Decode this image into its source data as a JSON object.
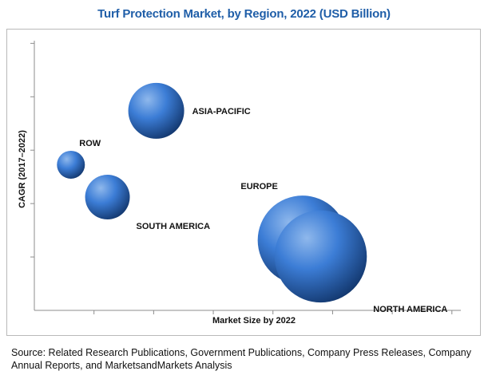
{
  "colors": {
    "title": "#1f5ea8",
    "bubble_light": "#8fb8ec",
    "bubble_mid": "#3c7dd6",
    "bubble_dark": "#13386f",
    "axis": "#8c8c8c",
    "frame": "#b9b9b9"
  },
  "source_text": "Source: Related Research Publications, Government Publications, Company Press Releases, Company Annual Reports, and MarketsandMarkets Analysis",
  "chart_data": {
    "type": "scatter",
    "subtype": "bubble",
    "title": "Turf Protection Market, by Region, 2022 (USD Billion)",
    "xlabel": "Market Size by 2022",
    "ylabel": "CAGR (2017–2022)",
    "xlim": [
      0,
      7
    ],
    "ylim": [
      0,
      5
    ],
    "x_ticks_visible": 7,
    "y_ticks_visible": 5,
    "grid": false,
    "legend": "none",
    "series": [
      {
        "points": [
          {
            "label": "ROW",
            "x": 0.6,
            "y": 2.7,
            "size": 1.0,
            "label_pos": "top-right"
          },
          {
            "label": "ASIA-PACIFIC",
            "x": 2.0,
            "y": 3.7,
            "size": 2.0,
            "label_pos": "right"
          },
          {
            "label": "SOUTH AMERICA",
            "x": 1.2,
            "y": 2.1,
            "size": 1.6,
            "label_pos": "bottom-right"
          },
          {
            "label": "EUROPE",
            "x": 4.4,
            "y": 1.3,
            "size": 3.2,
            "label_pos": "top-left"
          },
          {
            "label": "NORTH AMERICA",
            "x": 4.7,
            "y": 1.0,
            "size": 3.3,
            "label_pos": "bottom-right"
          }
        ]
      }
    ]
  }
}
